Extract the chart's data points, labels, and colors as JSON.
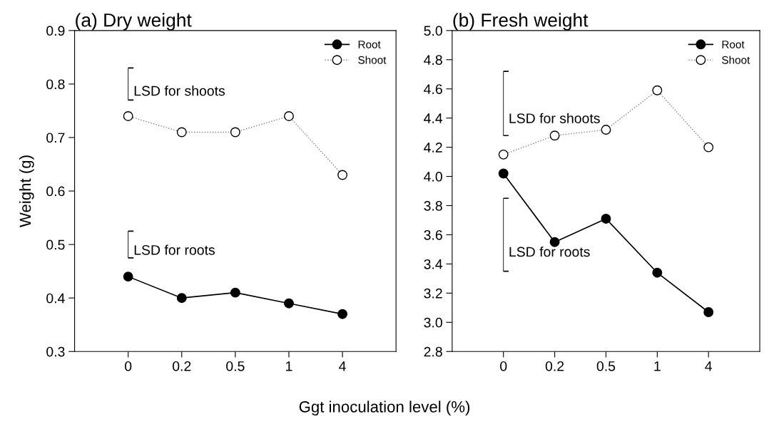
{
  "chart_data": [
    {
      "type": "line",
      "title": "(a) Dry weight",
      "ylabel": "Weight (g)",
      "xlabel": "Ggt inoculation level (%)",
      "categories": [
        "0",
        "0.2",
        "0.5",
        "1",
        "4"
      ],
      "ylim": [
        0.3,
        0.9
      ],
      "yticks": [
        0.3,
        0.4,
        0.5,
        0.6,
        0.7,
        0.8,
        0.9
      ],
      "legend": "top right",
      "grid": false,
      "series": [
        {
          "name": "Root",
          "color": "#000000",
          "marker": "circle",
          "line_style": "solid",
          "values": [
            0.44,
            0.4,
            0.41,
            0.39,
            0.37
          ]
        },
        {
          "name": "Shoot",
          "color": "#808080",
          "marker": "circle",
          "line_style": "dotted",
          "values": [
            0.74,
            0.71,
            0.71,
            0.74,
            0.63
          ]
        },
        {
          "name": "LSD for shoots",
          "type": "bar",
          "color": "#000000",
          "x": [
            "0"
          ],
          "base": [
            0.77
          ],
          "values": [
            0.06
          ]
        },
        {
          "name": "LSD for roots",
          "type": "bar",
          "color": "#000000",
          "x": [
            "0"
          ],
          "base": [
            0.475
          ],
          "values": [
            0.05
          ]
        }
      ]
    },
    {
      "type": "line",
      "title": "(b) Fresh weight",
      "categories": [
        "0",
        "0.2",
        "0.5",
        "1",
        "4"
      ],
      "ylim": [
        2.8,
        5.0
      ],
      "yticks": [
        {
          "value": 2.8,
          "label": "2.8"
        },
        {
          "value": 3.0,
          "label": "3.0"
        },
        {
          "value": 3.2,
          "label": "3.2"
        },
        {
          "value": 3.4,
          "label": "3.4"
        },
        {
          "value": 3.6,
          "label": "3.6"
        },
        {
          "value": 3.8,
          "label": "3.8"
        },
        {
          "value": 4.0,
          "label": "4.0"
        },
        {
          "value": 4.2,
          "label": "4.2"
        },
        {
          "value": 4.4,
          "label": "4.4"
        },
        {
          "value": 4.6,
          "label": "4.6"
        },
        {
          "value": 4.8,
          "label": "4.8"
        },
        {
          "value": 5.0,
          "label": "5.0"
        }
      ],
      "legend": "top right",
      "grid": false,
      "series": [
        {
          "name": "Root",
          "color": "#000000",
          "marker": "circle",
          "line_style": "solid",
          "values": [
            4.02,
            3.55,
            3.71,
            3.34,
            3.07
          ]
        },
        {
          "name": "Shoot",
          "color": "#808080",
          "marker": "circle",
          "line_style": "dotted",
          "values": [
            4.15,
            4.28,
            4.32,
            4.59,
            4.2
          ]
        },
        {
          "name": "LSD for shoots",
          "type": "bar",
          "color": "#000000",
          "x": [
            "0"
          ],
          "base": [
            4.28
          ],
          "values": [
            0.44
          ]
        },
        {
          "name": "LSD for roots",
          "type": "bar",
          "color": "#000000",
          "x": [
            "0"
          ],
          "base": [
            3.35
          ],
          "values": [
            0.5
          ]
        }
      ]
    }
  ]
}
